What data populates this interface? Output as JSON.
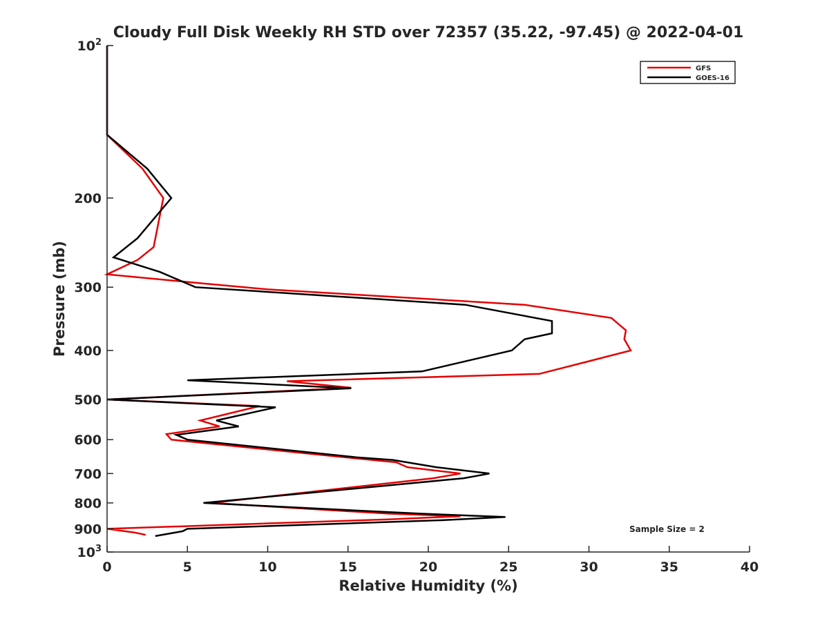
{
  "chart_data": {
    "type": "line",
    "title": "Cloudy Full Disk Weekly RH STD over 72357 (35.22, -97.45) @ 2022-04-01",
    "xlabel": "Relative Humidity (%)",
    "ylabel": "Pressure (mb)",
    "xlim": [
      0,
      40
    ],
    "ylim": [
      1000,
      100
    ],
    "y_scale": "log",
    "y_reversed": true,
    "x_ticks": [
      0,
      5,
      10,
      15,
      20,
      25,
      30,
      35,
      40
    ],
    "x_tick_labels": [
      "0",
      "5",
      "10",
      "15",
      "20",
      "25",
      "30",
      "35",
      "40"
    ],
    "y_ticks": [
      200,
      300,
      400,
      500,
      600,
      700,
      800,
      900
    ],
    "y_tick_labels": [
      "200",
      "300",
      "400",
      "500",
      "600",
      "700",
      "800",
      "900"
    ],
    "y_end_ticks": [
      {
        "value": 100,
        "base": "10",
        "exp": "2"
      },
      {
        "value": 1000,
        "base": "10",
        "exp": "3"
      }
    ],
    "grid": false,
    "legend_position": "top-right",
    "annotation": "Sample Size = 2",
    "series": [
      {
        "name": "GFS",
        "color": "#e50000",
        "points": [
          [
            0,
            100
          ],
          [
            0,
            125
          ],
          [
            0,
            150
          ],
          [
            2.2,
            175
          ],
          [
            3.5,
            200
          ],
          [
            2.9,
            250
          ],
          [
            1.9,
            265
          ],
          [
            0,
            283
          ],
          [
            5.5,
            294
          ],
          [
            10,
            303
          ],
          [
            26,
            325
          ],
          [
            31.4,
            345
          ],
          [
            32.3,
            365
          ],
          [
            32.2,
            380
          ],
          [
            32.6,
            400
          ],
          [
            30,
            420
          ],
          [
            26.9,
            445
          ],
          [
            11.2,
            460
          ],
          [
            15.2,
            474
          ],
          [
            0,
            500
          ],
          [
            9.5,
            515
          ],
          [
            5.8,
            550
          ],
          [
            7,
            565
          ],
          [
            3.7,
            585
          ],
          [
            4,
            600
          ],
          [
            14.8,
            650
          ],
          [
            18,
            665
          ],
          [
            18.7,
            680
          ],
          [
            22,
            700
          ],
          [
            20.3,
            715
          ],
          [
            6.5,
            800
          ],
          [
            17.5,
            840
          ],
          [
            22,
            850
          ],
          [
            17.5,
            862
          ],
          [
            0,
            900
          ],
          [
            1.7,
            915
          ],
          [
            2.4,
            925
          ]
        ]
      },
      {
        "name": "GOES-16",
        "color": "#000000",
        "points": [
          [
            0,
            100
          ],
          [
            0,
            125
          ],
          [
            0,
            150
          ],
          [
            2.5,
            175
          ],
          [
            4,
            200
          ],
          [
            1.9,
            240
          ],
          [
            0.4,
            262
          ],
          [
            3.3,
            280
          ],
          [
            5.5,
            300
          ],
          [
            22.3,
            325
          ],
          [
            27.7,
            350
          ],
          [
            27.7,
            370
          ],
          [
            26,
            380
          ],
          [
            25.2,
            400
          ],
          [
            19.6,
            440
          ],
          [
            5,
            458
          ],
          [
            15.2,
            475
          ],
          [
            0,
            500
          ],
          [
            10.5,
            518
          ],
          [
            6.8,
            550
          ],
          [
            8.2,
            565
          ],
          [
            4.3,
            587
          ],
          [
            5,
            600
          ],
          [
            15.5,
            650
          ],
          [
            17.8,
            658
          ],
          [
            20.5,
            680
          ],
          [
            23.8,
            700
          ],
          [
            22.2,
            715
          ],
          [
            6,
            800
          ],
          [
            19.5,
            840
          ],
          [
            24.8,
            853
          ],
          [
            21,
            865
          ],
          [
            5,
            900
          ],
          [
            4.7,
            910
          ],
          [
            3,
            930
          ]
        ]
      }
    ]
  }
}
